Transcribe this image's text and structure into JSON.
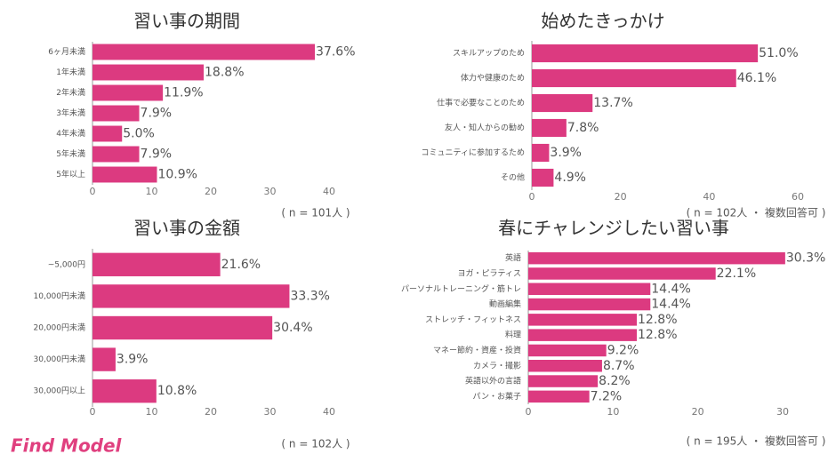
{
  "chart_data": [
    {
      "type": "bar",
      "orientation": "horizontal",
      "title": "習い事の期間",
      "categories": [
        "6ヶ月未満",
        "1年未満",
        "2年未満",
        "3年未満",
        "4年未満",
        "5年未満",
        "5年以上"
      ],
      "values": [
        37.6,
        18.8,
        11.9,
        7.9,
        5.0,
        7.9,
        10.9
      ],
      "value_labels": [
        "37.6%",
        "18.8%",
        "11.9%",
        "7.9%",
        "5.0%",
        "7.9%",
        "10.9%"
      ],
      "color": "#dc3a80",
      "xlim": [
        0,
        40
      ],
      "xticks": [
        0,
        10,
        20,
        30,
        40
      ],
      "note": "( n = 101人 )"
    },
    {
      "type": "bar",
      "orientation": "horizontal",
      "title": "始めたきっかけ",
      "categories": [
        "スキルアップのため",
        "体力や健康のため",
        "仕事で必要なことのため",
        "友人・知人からの勧め",
        "コミュニティに参加するため",
        "その他"
      ],
      "values": [
        51.0,
        46.1,
        13.7,
        7.8,
        3.9,
        4.9
      ],
      "value_labels": [
        "51.0%",
        "46.1%",
        "13.7%",
        "7.8%",
        "3.9%",
        "4.9%"
      ],
      "color": "#dc3a80",
      "xlim": [
        0,
        60
      ],
      "xticks": [
        0,
        20,
        40,
        60
      ],
      "note": "( n = 102人 ・ 複数回答可 )"
    },
    {
      "type": "bar",
      "orientation": "horizontal",
      "title": "習い事の金額",
      "categories": [
        "~5,000円",
        "10,000円未満",
        "20,000円未満",
        "30,000円未満",
        "30,000円以上"
      ],
      "values": [
        21.6,
        33.3,
        30.4,
        3.9,
        10.8
      ],
      "value_labels": [
        "21.6%",
        "33.3%",
        "30.4%",
        "3.9%",
        "10.8%"
      ],
      "color": "#dc3a80",
      "xlim": [
        0,
        40
      ],
      "xticks": [
        0,
        10,
        20,
        30,
        40
      ],
      "note": "( n = 102人 )"
    },
    {
      "type": "bar",
      "orientation": "horizontal",
      "title": "春にチャレンジしたい習い事",
      "categories": [
        "英語",
        "ヨガ・ピラティス",
        "パーソナルトレーニング・筋トレ",
        "動画編集",
        "ストレッチ・フィットネス",
        "料理",
        "マネー節約・資産・投資",
        "カメラ・撮影",
        "英語以外の言語",
        "パン・お菓子"
      ],
      "values": [
        30.3,
        22.1,
        14.4,
        14.4,
        12.8,
        12.8,
        9.2,
        8.7,
        8.2,
        7.2
      ],
      "value_labels": [
        "30.3%",
        "22.1%",
        "14.4%",
        "14.4%",
        "12.8%",
        "12.8%",
        "9.2%",
        "8.7%",
        "8.2%",
        "7.2%"
      ],
      "color": "#dc3a80",
      "xlim": [
        0,
        30
      ],
      "xticks": [
        0,
        10,
        20,
        30
      ],
      "note": "( n = 195人 ・ 複数回答可 )"
    }
  ],
  "logo": "Find Model"
}
